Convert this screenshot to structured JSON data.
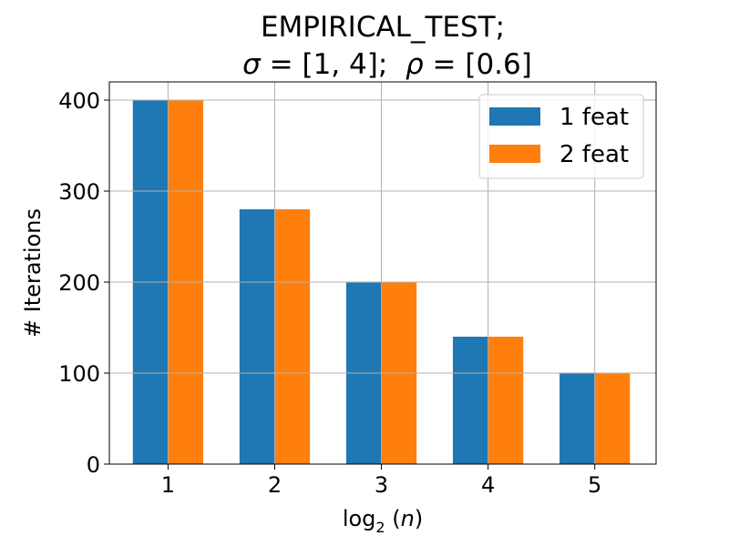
{
  "chart_data": {
    "type": "bar",
    "title_line1": "EMPIRICAL_TEST;",
    "title_line2": {
      "sigma_symbol": "σ",
      "sigma_value": " = [1, 4];  ",
      "rho_symbol": "ρ",
      "rho_value": " = [0.6]"
    },
    "xlabel": {
      "log": "log",
      "base": "2",
      "open": " (",
      "var": "n",
      "close": ")"
    },
    "ylabel": "# Iterations",
    "categories": [
      "1",
      "2",
      "3",
      "4",
      "5"
    ],
    "series": [
      {
        "name": "1 feat",
        "color": "#1f77b4",
        "values": [
          400,
          280,
          200,
          140,
          100
        ]
      },
      {
        "name": "2 feat",
        "color": "#ff7f0e",
        "values": [
          400,
          280,
          200,
          140,
          100
        ]
      }
    ],
    "yticks": [
      0,
      100,
      200,
      300,
      400
    ],
    "ylim": [
      0,
      420
    ],
    "grid": true,
    "legend_position": "top-right"
  }
}
